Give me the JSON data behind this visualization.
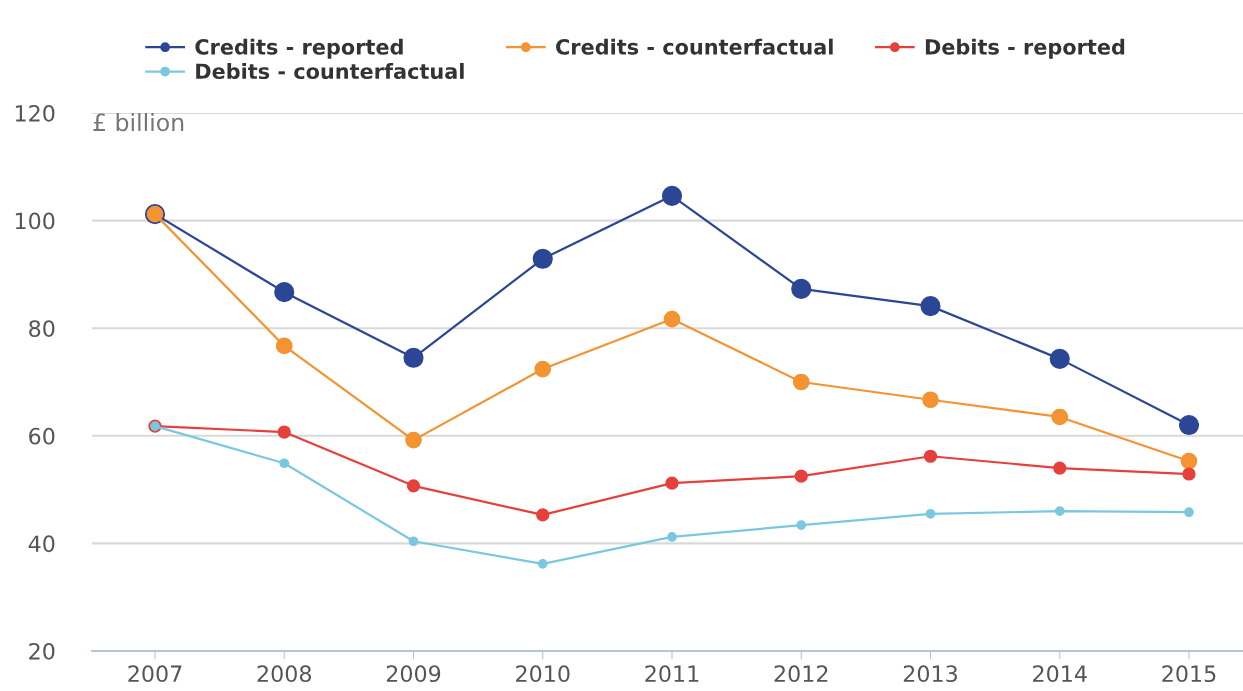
{
  "chart_data": {
    "type": "line",
    "ylabel": "£ billion",
    "categories": [
      "2007",
      "2008",
      "2009",
      "2010",
      "2011",
      "2012",
      "2013",
      "2014",
      "2015"
    ],
    "series": [
      {
        "name": "Credits - reported",
        "color": "#2c4696",
        "values": [
          101.2,
          86.7,
          74.5,
          92.9,
          104.6,
          87.3,
          84.1,
          74.3,
          62.0
        ]
      },
      {
        "name": "Credits - counterfactual",
        "color": "#f39331",
        "values": [
          101.2,
          76.7,
          59.2,
          72.4,
          81.7,
          70.0,
          66.7,
          63.5,
          55.3
        ]
      },
      {
        "name": "Debits - reported",
        "color": "#e5403c",
        "values": [
          61.8,
          60.7,
          50.7,
          45.3,
          51.2,
          52.5,
          56.2,
          54.0,
          52.9
        ]
      },
      {
        "name": "Debits - counterfactual",
        "color": "#7ac8e0",
        "values": [
          61.8,
          54.9,
          40.4,
          36.2,
          41.2,
          43.4,
          45.5,
          46.0,
          45.8
        ]
      }
    ],
    "ylim": [
      20,
      120
    ],
    "yticks": [
      20,
      40,
      60,
      80,
      100,
      120
    ],
    "grid": "y",
    "legend": "top",
    "marker": "circle",
    "line_style": "solid"
  }
}
